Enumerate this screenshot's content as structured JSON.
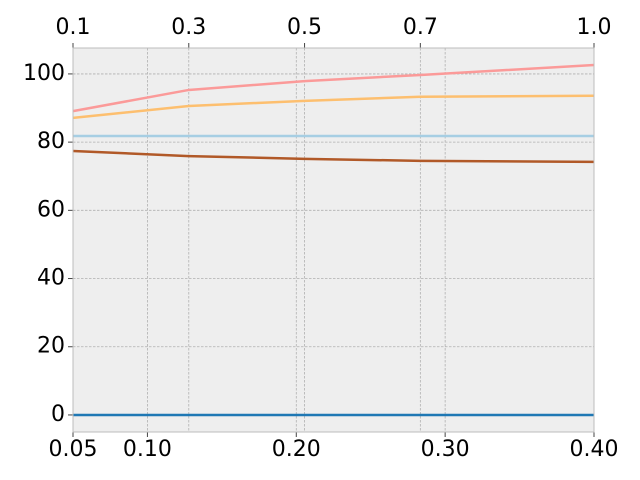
{
  "chart_data": {
    "type": "line",
    "x": [
      0.1,
      0.3,
      0.5,
      0.7,
      1.0
    ],
    "x_axis": "x2",
    "series": [
      {
        "color": "#fb9a99",
        "values": [
          89.1,
          95.3,
          97.9,
          99.7,
          102.6
        ]
      },
      {
        "color": "#fdbf6f",
        "values": [
          87.1,
          90.6,
          92.1,
          93.3,
          93.6
        ]
      },
      {
        "color": "#a6cee3",
        "values": [
          81.8,
          81.8,
          81.8,
          81.8,
          81.8
        ]
      },
      {
        "color": "#b15928",
        "values": [
          77.4,
          75.9,
          75.1,
          74.5,
          74.2
        ]
      },
      {
        "color": "#1f78b4",
        "values": [
          0,
          0,
          0,
          0,
          0
        ]
      }
    ],
    "xlim": [
      0.05,
      0.4
    ],
    "xticks": [
      0.05,
      {
        "value": 0.1,
        "label": "0.10"
      },
      {
        "value": 0.2,
        "label": "0.20"
      },
      {
        "value": 0.3,
        "label": "0.30"
      },
      {
        "value": 0.4,
        "label": "0.40"
      }
    ],
    "x2lim": [
      0.1,
      1.0
    ],
    "x2ticks": [
      0.1,
      0.3,
      0.5,
      0.7,
      {
        "value": 1.0,
        "label": "1.0"
      }
    ],
    "ylim": [
      -5,
      107.6
    ],
    "yticks": [
      0,
      20,
      40,
      60,
      80,
      100
    ],
    "grid": true,
    "background": "#eeeeee"
  }
}
